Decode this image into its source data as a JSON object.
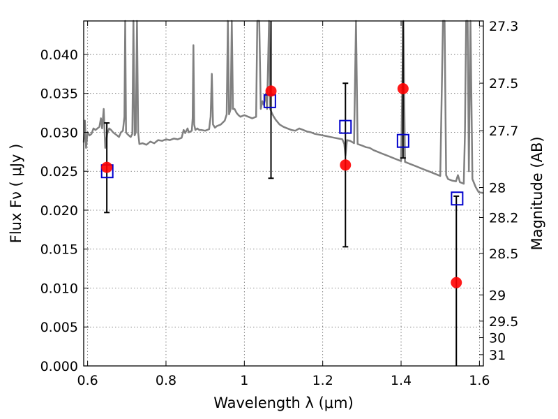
{
  "chart_data": {
    "type": "scatter",
    "xlabel": "Wavelength  λ (μm)",
    "ylabel": "Flux  Fν  ( μJy )",
    "y2label": "Magnitude (AB)",
    "xlim": [
      0.59,
      1.61
    ],
    "ylim": [
      0.0,
      0.0443
    ],
    "x_ticks": [
      {
        "value": 0.6,
        "label": "0.6"
      },
      {
        "value": 0.8,
        "label": "0.8"
      },
      {
        "value": 1.0,
        "label": "1"
      },
      {
        "value": 1.2,
        "label": "1.2"
      },
      {
        "value": 1.4,
        "label": "1.4"
      },
      {
        "value": 1.6,
        "label": "1.6"
      }
    ],
    "y_ticks": [
      {
        "value": 0.0,
        "label": "0.000"
      },
      {
        "value": 0.005,
        "label": "0.005"
      },
      {
        "value": 0.01,
        "label": "0.010"
      },
      {
        "value": 0.015,
        "label": "0.015"
      },
      {
        "value": 0.02,
        "label": "0.020"
      },
      {
        "value": 0.025,
        "label": "0.025"
      },
      {
        "value": 0.03,
        "label": "0.030"
      },
      {
        "value": 0.035,
        "label": "0.035"
      },
      {
        "value": 0.04,
        "label": "0.040"
      }
    ],
    "y2_ticks": [
      {
        "value": 27.3,
        "label": "27.3"
      },
      {
        "value": 27.5,
        "label": "27.5"
      },
      {
        "value": 27.7,
        "label": "27.7"
      },
      {
        "value": 28.0,
        "label": "28"
      },
      {
        "value": 28.2,
        "label": "28.2"
      },
      {
        "value": 28.5,
        "label": "28.5"
      },
      {
        "value": 29.0,
        "label": "29"
      },
      {
        "value": 29.5,
        "label": "29.5"
      },
      {
        "value": 30.0,
        "label": "30"
      },
      {
        "value": 31.0,
        "label": "31"
      }
    ],
    "grid": true,
    "spectrum": {
      "color": "#808080",
      "points": [
        [
          0.59,
          0.0287
        ],
        [
          0.593,
          0.0315
        ],
        [
          0.596,
          0.028
        ],
        [
          0.6,
          0.03
        ],
        [
          0.605,
          0.0296
        ],
        [
          0.61,
          0.0298
        ],
        [
          0.615,
          0.0305
        ],
        [
          0.62,
          0.0303
        ],
        [
          0.625,
          0.0305
        ],
        [
          0.63,
          0.0307
        ],
        [
          0.634,
          0.0318
        ],
        [
          0.637,
          0.0305
        ],
        [
          0.641,
          0.033
        ],
        [
          0.645,
          0.028
        ],
        [
          0.65,
          0.0298
        ],
        [
          0.655,
          0.0305
        ],
        [
          0.66,
          0.0303
        ],
        [
          0.665,
          0.03
        ],
        [
          0.67,
          0.0298
        ],
        [
          0.675,
          0.0296
        ],
        [
          0.68,
          0.0294
        ],
        [
          0.685,
          0.03
        ],
        [
          0.69,
          0.0302
        ],
        [
          0.694,
          0.032
        ],
        [
          0.696,
          0.0443
        ],
        [
          0.698,
          0.03
        ],
        [
          0.701,
          0.0298
        ],
        [
          0.705,
          0.0296
        ],
        [
          0.71,
          0.0294
        ],
        [
          0.714,
          0.0298
        ],
        [
          0.717,
          0.0443
        ],
        [
          0.72,
          0.0296
        ],
        [
          0.723,
          0.03
        ],
        [
          0.726,
          0.0443
        ],
        [
          0.729,
          0.03
        ],
        [
          0.732,
          0.0285
        ],
        [
          0.74,
          0.0286
        ],
        [
          0.75,
          0.0284
        ],
        [
          0.76,
          0.0288
        ],
        [
          0.77,
          0.0286
        ],
        [
          0.78,
          0.029
        ],
        [
          0.79,
          0.0289
        ],
        [
          0.8,
          0.0291
        ],
        [
          0.81,
          0.029
        ],
        [
          0.82,
          0.0292
        ],
        [
          0.83,
          0.0291
        ],
        [
          0.84,
          0.0293
        ],
        [
          0.845,
          0.0303
        ],
        [
          0.849,
          0.0299
        ],
        [
          0.855,
          0.0305
        ],
        [
          0.858,
          0.03
        ],
        [
          0.866,
          0.0302
        ],
        [
          0.868,
          0.0318
        ],
        [
          0.87,
          0.0412
        ],
        [
          0.872,
          0.031
        ],
        [
          0.875,
          0.0303
        ],
        [
          0.88,
          0.0305
        ],
        [
          0.885,
          0.0303
        ],
        [
          0.89,
          0.0303
        ],
        [
          0.9,
          0.0302
        ],
        [
          0.91,
          0.0304
        ],
        [
          0.914,
          0.032
        ],
        [
          0.917,
          0.0375
        ],
        [
          0.92,
          0.031
        ],
        [
          0.925,
          0.0306
        ],
        [
          0.93,
          0.0308
        ],
        [
          0.94,
          0.031
        ],
        [
          0.95,
          0.0315
        ],
        [
          0.955,
          0.0323
        ],
        [
          0.958,
          0.0443
        ],
        [
          0.961,
          0.0323
        ],
        [
          0.965,
          0.033
        ],
        [
          0.968,
          0.0443
        ],
        [
          0.971,
          0.033
        ],
        [
          0.975,
          0.033
        ],
        [
          0.98,
          0.0325
        ],
        [
          0.985,
          0.0322
        ],
        [
          0.99,
          0.032
        ],
        [
          1.0,
          0.0322
        ],
        [
          1.01,
          0.032
        ],
        [
          1.02,
          0.0318
        ],
        [
          1.03,
          0.032
        ],
        [
          1.033,
          0.0443
        ],
        [
          1.038,
          0.0443
        ],
        [
          1.042,
          0.033
        ],
        [
          1.046,
          0.034
        ],
        [
          1.05,
          0.0335
        ],
        [
          1.055,
          0.035
        ],
        [
          1.058,
          0.033
        ],
        [
          1.063,
          0.0443
        ],
        [
          1.066,
          0.033
        ],
        [
          1.07,
          0.0325
        ],
        [
          1.075,
          0.032
        ],
        [
          1.08,
          0.0316
        ],
        [
          1.09,
          0.031
        ],
        [
          1.1,
          0.0307
        ],
        [
          1.11,
          0.0305
        ],
        [
          1.12,
          0.0303
        ],
        [
          1.13,
          0.0302
        ],
        [
          1.14,
          0.0305
        ],
        [
          1.15,
          0.0303
        ],
        [
          1.16,
          0.0301
        ],
        [
          1.17,
          0.03
        ],
        [
          1.18,
          0.0298
        ],
        [
          1.19,
          0.0297
        ],
        [
          1.2,
          0.0296
        ],
        [
          1.21,
          0.0295
        ],
        [
          1.22,
          0.0294
        ],
        [
          1.23,
          0.0293
        ],
        [
          1.24,
          0.0292
        ],
        [
          1.25,
          0.0291
        ],
        [
          1.255,
          0.0285
        ],
        [
          1.258,
          0.027
        ],
        [
          1.262,
          0.029
        ],
        [
          1.27,
          0.0289
        ],
        [
          1.28,
          0.0286
        ],
        [
          1.285,
          0.0443
        ],
        [
          1.289,
          0.0285
        ],
        [
          1.3,
          0.0283
        ],
        [
          1.31,
          0.0281
        ],
        [
          1.32,
          0.028
        ],
        [
          1.33,
          0.0277
        ],
        [
          1.34,
          0.0275
        ],
        [
          1.35,
          0.0273
        ],
        [
          1.36,
          0.0271
        ],
        [
          1.37,
          0.0269
        ],
        [
          1.38,
          0.0267
        ],
        [
          1.39,
          0.0265
        ],
        [
          1.4,
          0.0263
        ],
        [
          1.406,
          0.0443
        ],
        [
          1.41,
          0.0262
        ],
        [
          1.42,
          0.026
        ],
        [
          1.43,
          0.0258
        ],
        [
          1.44,
          0.0256
        ],
        [
          1.45,
          0.0254
        ],
        [
          1.46,
          0.0252
        ],
        [
          1.47,
          0.025
        ],
        [
          1.48,
          0.0248
        ],
        [
          1.49,
          0.0246
        ],
        [
          1.5,
          0.0244
        ],
        [
          1.504,
          0.036
        ],
        [
          1.507,
          0.0443
        ],
        [
          1.511,
          0.0443
        ],
        [
          1.515,
          0.0245
        ],
        [
          1.52,
          0.024
        ],
        [
          1.53,
          0.0238
        ],
        [
          1.54,
          0.0237
        ],
        [
          1.545,
          0.0245
        ],
        [
          1.548,
          0.024
        ],
        [
          1.55,
          0.0236
        ],
        [
          1.56,
          0.0234
        ],
        [
          1.563,
          0.03
        ],
        [
          1.566,
          0.0443
        ],
        [
          1.57,
          0.0443
        ],
        [
          1.573,
          0.025
        ],
        [
          1.577,
          0.0443
        ],
        [
          1.582,
          0.024
        ],
        [
          1.59,
          0.023
        ],
        [
          1.598,
          0.0223
        ],
        [
          1.61,
          0.0222
        ]
      ]
    },
    "observed": {
      "color": "#ff0000",
      "points": [
        {
          "x": 0.649,
          "y": 0.0255,
          "yerr_low": 0.0197,
          "yerr_high": 0.0312
        },
        {
          "x": 1.068,
          "y": 0.0353,
          "yerr_low": 0.0241,
          "yerr_high": 0.0443
        },
        {
          "x": 1.258,
          "y": 0.0258,
          "yerr_low": 0.0153,
          "yerr_high": 0.0363
        },
        {
          "x": 1.405,
          "y": 0.0356,
          "yerr_low": 0.0267,
          "yerr_high": 0.0443
        },
        {
          "x": 1.541,
          "y": 0.0107,
          "yerr_low": 0.0,
          "yerr_high": 0.0218
        }
      ]
    },
    "model": {
      "color": "#0000cc",
      "points": [
        {
          "x": 0.65,
          "y": 0.025
        },
        {
          "x": 1.065,
          "y": 0.034
        },
        {
          "x": 1.258,
          "y": 0.0307
        },
        {
          "x": 1.405,
          "y": 0.0289
        },
        {
          "x": 1.543,
          "y": 0.0215
        }
      ]
    }
  }
}
